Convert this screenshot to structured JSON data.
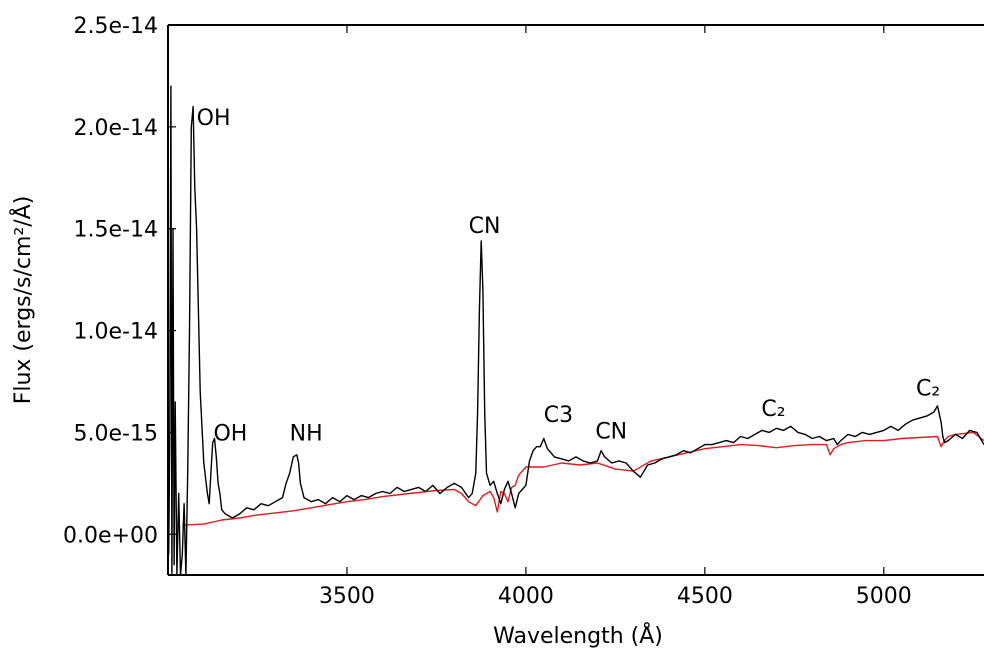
{
  "chart_data": {
    "type": "line",
    "title": "",
    "xlabel": "Wavelength (Å)",
    "ylabel": "Flux (ergs/s/cm²/Å)",
    "xlim": [
      3000,
      5280
    ],
    "ylim": [
      -2e-15,
      2.5e-14
    ],
    "grid": false,
    "x_ticks": [
      3500,
      4000,
      4500,
      5000
    ],
    "x_tick_labels": [
      "3500",
      "4000",
      "4500",
      "5000"
    ],
    "y_ticks": [
      0,
      5e-15,
      1e-14,
      1.5e-14,
      2e-14,
      2.5e-14
    ],
    "y_tick_labels": [
      "0.0e+00",
      "5.0e-15",
      "1.0e-14",
      "1.5e-14",
      "2.0e-14",
      "2.5e-14"
    ],
    "series": [
      {
        "color": "#000000",
        "x": [
          3002,
          3005,
          3008,
          3011,
          3014,
          3017,
          3020,
          3025,
          3030,
          3035,
          3040,
          3045,
          3050,
          3055,
          3060,
          3065,
          3070,
          3075,
          3080,
          3090,
          3100,
          3110,
          3115,
          3120,
          3125,
          3130,
          3135,
          3140,
          3145,
          3150,
          3160,
          3180,
          3200,
          3220,
          3240,
          3260,
          3280,
          3300,
          3320,
          3330,
          3340,
          3350,
          3360,
          3365,
          3370,
          3380,
          3400,
          3420,
          3440,
          3460,
          3480,
          3500,
          3520,
          3540,
          3560,
          3580,
          3600,
          3620,
          3640,
          3660,
          3680,
          3700,
          3720,
          3740,
          3760,
          3780,
          3800,
          3820,
          3840,
          3850,
          3860,
          3865,
          3870,
          3875,
          3880,
          3885,
          3890,
          3900,
          3910,
          3920,
          3930,
          3940,
          3950,
          3960,
          3970,
          3980,
          4000,
          4010,
          4020,
          4030,
          4040,
          4050,
          4060,
          4080,
          4100,
          4120,
          4140,
          4160,
          4180,
          4200,
          4210,
          4220,
          4240,
          4260,
          4280,
          4300,
          4320,
          4340,
          4360,
          4380,
          4400,
          4420,
          4440,
          4460,
          4480,
          4500,
          4520,
          4540,
          4560,
          4580,
          4600,
          4620,
          4640,
          4660,
          4680,
          4700,
          4720,
          4740,
          4760,
          4780,
          4800,
          4820,
          4840,
          4860,
          4870,
          4880,
          4900,
          4920,
          4940,
          4960,
          4980,
          5000,
          5020,
          5040,
          5060,
          5080,
          5100,
          5120,
          5140,
          5150,
          5160,
          5165,
          5170,
          5180,
          5200,
          5220,
          5240,
          5260,
          5280
        ],
        "y": [
          -1e-15,
          5e-15,
          2.2e-14,
          -2e-15,
          1.5e-14,
          -1.5e-15,
          6.5e-15,
          -2e-15,
          2e-15,
          -2e-15,
          -1e-15,
          1.5e-15,
          -2e-15,
          3e-15,
          1e-14,
          2e-14,
          2.1e-14,
          1.7e-14,
          1.5e-14,
          7e-15,
          3.5e-15,
          2e-15,
          1.5e-15,
          3e-15,
          4.5e-15,
          4.7e-15,
          3.8e-15,
          2.5e-15,
          2e-15,
          1.2e-15,
          1e-15,
          8e-16,
          1e-15,
          1.3e-15,
          1.2e-15,
          1.5e-15,
          1.4e-15,
          1.6e-15,
          1.8e-15,
          2.5e-15,
          3e-15,
          3.8e-15,
          3.9e-15,
          3.5e-15,
          2.5e-15,
          1.8e-15,
          1.6e-15,
          1.7e-15,
          1.5e-15,
          1.8e-15,
          1.6e-15,
          1.9e-15,
          1.7e-15,
          1.9e-15,
          1.8e-15,
          2e-15,
          2.1e-15,
          2e-15,
          2.3e-15,
          2.1e-15,
          2.2e-15,
          2.3e-15,
          2.1e-15,
          2.4e-15,
          2e-15,
          2.3e-15,
          2.5e-15,
          2.3e-15,
          1.8e-15,
          2e-15,
          3e-15,
          6e-15,
          1.1e-14,
          1.44e-14,
          1.2e-14,
          6e-15,
          3e-15,
          2.4e-15,
          2.6e-15,
          2e-15,
          1.5e-15,
          2.2e-15,
          2.6e-15,
          2e-15,
          1.3e-15,
          2e-15,
          2.4e-15,
          3.6e-15,
          4.1e-15,
          4.3e-15,
          4.3e-15,
          4.7e-15,
          4.2e-15,
          3.8e-15,
          3.7e-15,
          3.6e-15,
          3.8e-15,
          3.6e-15,
          3.5e-15,
          3.6e-15,
          4.1e-15,
          3.8e-15,
          3.5e-15,
          3.6e-15,
          3.5e-15,
          3.1e-15,
          2.8e-15,
          3.4e-15,
          3.5e-15,
          3.7e-15,
          3.8e-15,
          3.9e-15,
          4.1e-15,
          4e-15,
          4.2e-15,
          4.4e-15,
          4.4e-15,
          4.5e-15,
          4.6e-15,
          4.5e-15,
          4.8e-15,
          4.7e-15,
          4.9e-15,
          5.1e-15,
          5e-15,
          5.2e-15,
          5.1e-15,
          5.3e-15,
          5e-15,
          4.9e-15,
          4.7e-15,
          4.8e-15,
          4.6e-15,
          4.7e-15,
          4.4e-15,
          4.6e-15,
          4.9e-15,
          4.8e-15,
          5e-15,
          4.9e-15,
          5e-15,
          5.1e-15,
          5.3e-15,
          5.1e-15,
          5.4e-15,
          5.6e-15,
          5.7e-15,
          5.8e-15,
          6e-15,
          6.3e-15,
          5.5e-15,
          4.8e-15,
          4.5e-15,
          4.6e-15,
          4.9e-15,
          4.7e-15,
          5.1e-15,
          5e-15,
          4.4e-15
        ]
      },
      {
        "color": "#e31a1c",
        "x": [
          3040,
          3100,
          3150,
          3200,
          3250,
          3300,
          3350,
          3400,
          3450,
          3500,
          3550,
          3600,
          3650,
          3700,
          3750,
          3800,
          3820,
          3840,
          3860,
          3880,
          3900,
          3910,
          3920,
          3930,
          3940,
          3950,
          3960,
          3970,
          3980,
          4000,
          4050,
          4100,
          4150,
          4200,
          4250,
          4300,
          4350,
          4400,
          4450,
          4500,
          4550,
          4600,
          4650,
          4700,
          4750,
          4800,
          4840,
          4850,
          4860,
          4880,
          4900,
          4950,
          5000,
          5050,
          5100,
          5150,
          5160,
          5170,
          5180,
          5200,
          5250,
          5280
        ],
        "y": [
          4.5e-16,
          5e-16,
          7e-16,
          8e-16,
          9.5e-16,
          1.05e-15,
          1.15e-15,
          1.3e-15,
          1.45e-15,
          1.6e-15,
          1.7e-15,
          1.85e-15,
          1.95e-15,
          2.05e-15,
          2.15e-15,
          2.2e-15,
          2e-15,
          1.6e-15,
          1.4e-15,
          1.9e-15,
          2.1e-15,
          1.8e-15,
          1.1e-15,
          2.1e-15,
          2e-15,
          1.6e-15,
          2.3e-15,
          2.4e-15,
          2.9e-15,
          3.3e-15,
          3.3e-15,
          3.5e-15,
          3.4e-15,
          3.5e-15,
          3.2e-15,
          3.1e-15,
          3.6e-15,
          3.8e-15,
          4e-15,
          4.2e-15,
          4.3e-15,
          4.4e-15,
          4.35e-15,
          4.25e-15,
          4.35e-15,
          4.4e-15,
          4.4e-15,
          3.9e-15,
          4.2e-15,
          4.4e-15,
          4.5e-15,
          4.6e-15,
          4.6e-15,
          4.7e-15,
          4.75e-15,
          4.8e-15,
          4.3e-15,
          4.6e-15,
          4.8e-15,
          4.9e-15,
          5e-15,
          4.6e-15
        ]
      }
    ],
    "annotations": [
      {
        "text": "OH",
        "x": 3080,
        "y": 2.01e-14
      },
      {
        "text": "OH",
        "x": 3127,
        "y": 4.6e-15
      },
      {
        "text": "NH",
        "x": 3340,
        "y": 4.6e-15
      },
      {
        "text": "CN",
        "x": 3840,
        "y": 1.48e-14
      },
      {
        "text": "C3",
        "x": 4050,
        "y": 5.5e-15
      },
      {
        "text": "CN",
        "x": 4194,
        "y": 4.7e-15
      },
      {
        "text": "C₂",
        "x": 4658,
        "y": 5.8e-15
      },
      {
        "text": "C₂",
        "x": 5090,
        "y": 6.8e-15
      }
    ]
  }
}
